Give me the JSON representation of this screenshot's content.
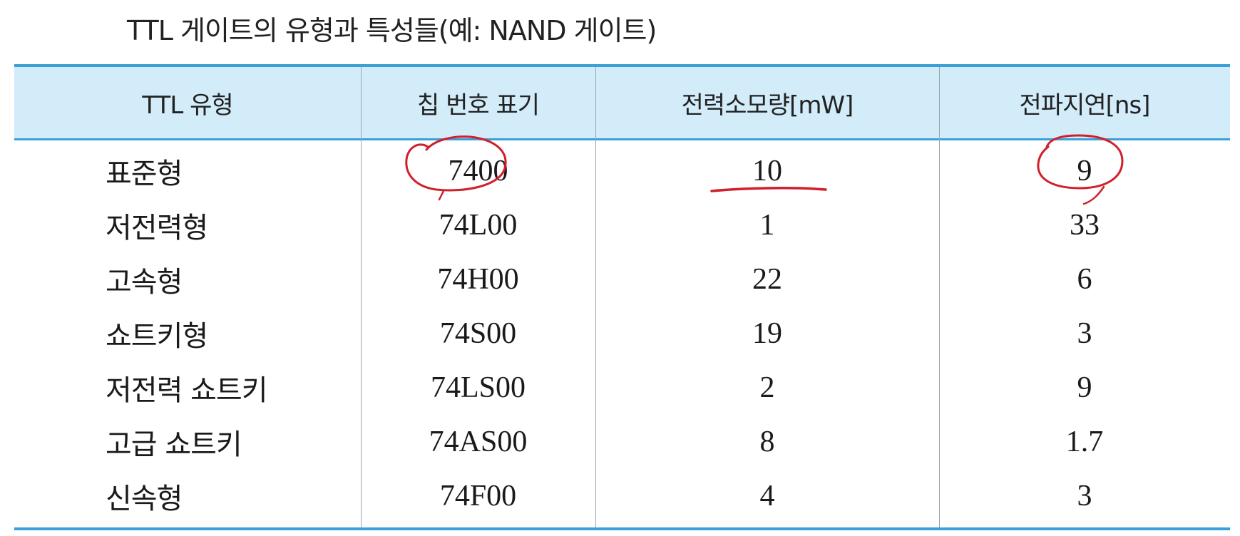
{
  "title": "TTL 게이트의 유형과 특성들(예: NAND 게이트)",
  "table": {
    "headers": [
      "TTL 유형",
      "칩 번호 표기",
      "전력소모량[mW]",
      "전파지연[ns]"
    ],
    "rows": [
      {
        "type": "표준형",
        "chip": "7400",
        "power": "10",
        "delay": "9"
      },
      {
        "type": "저전력형",
        "chip": "74L00",
        "power": "1",
        "delay": "33"
      },
      {
        "type": "고속형",
        "chip": "74H00",
        "power": "22",
        "delay": "6"
      },
      {
        "type": "쇼트키형",
        "chip": "74S00",
        "power": "19",
        "delay": "3"
      },
      {
        "type": "저전력 쇼트키",
        "chip": "74LS00",
        "power": "2",
        "delay": "9"
      },
      {
        "type": "고급 쇼트키",
        "chip": "74AS00",
        "power": "8",
        "delay": "1.7"
      },
      {
        "type": "신속형",
        "chip": "74F00",
        "power": "4",
        "delay": "3"
      }
    ]
  },
  "annotations": {
    "ink_color": "#d0202a",
    "marks": [
      "circle around chip 7400",
      "underline under power 10",
      "circle around delay 9"
    ]
  }
}
